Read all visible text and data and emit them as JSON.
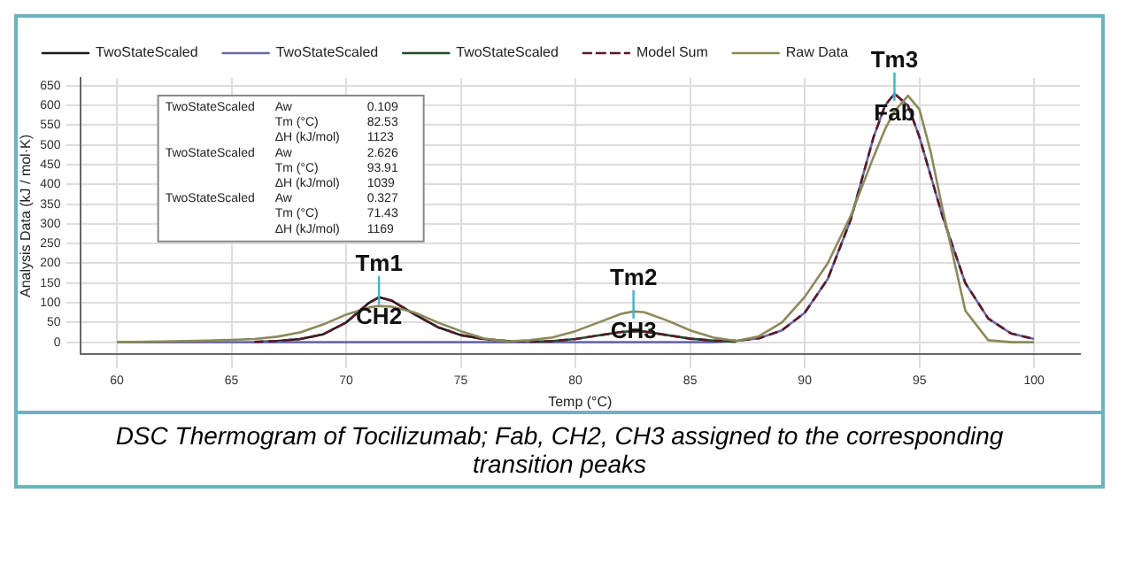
{
  "chart_data": {
    "type": "line",
    "xlabel": "Temp (°C)",
    "ylabel": "Analysis Data (kJ / mol·K)",
    "x": [
      60,
      62,
      64,
      66,
      67,
      68,
      69,
      70,
      71,
      71.43,
      72,
      73,
      74,
      75,
      76,
      77,
      78,
      79,
      80,
      81,
      82,
      82.53,
      83,
      84,
      85,
      86,
      87,
      88,
      89,
      90,
      91,
      92,
      93,
      93.5,
      93.91,
      94.5,
      95,
      95.5,
      96,
      97,
      98,
      99,
      100
    ],
    "series": [
      {
        "name": "TwoStateScaled",
        "color": "#1a1a1a",
        "values": [
          null,
          null,
          null,
          1,
          3,
          8,
          20,
          50,
          100,
          114,
          105,
          70,
          38,
          18,
          8,
          3,
          1,
          null,
          null,
          null,
          null,
          null,
          null,
          null,
          null,
          null,
          null,
          null,
          null,
          null,
          null,
          null,
          null,
          null,
          null,
          null,
          null,
          null,
          null,
          null,
          null,
          null,
          null
        ]
      },
      {
        "name": "TwoStateScaled",
        "color": "#6a6aa8",
        "values": [
          0,
          0,
          0,
          0,
          0,
          0,
          0,
          0,
          0,
          0,
          0,
          0,
          0,
          0,
          0,
          0,
          0,
          0,
          0,
          0,
          0,
          0,
          0,
          0,
          0,
          0,
          3,
          10,
          30,
          75,
          160,
          310,
          520,
          600,
          630,
          600,
          520,
          420,
          320,
          150,
          60,
          22,
          8
        ]
      },
      {
        "name": "TwoStateScaled",
        "color": "#1e4d2b",
        "values": [
          null,
          null,
          null,
          null,
          null,
          null,
          null,
          null,
          null,
          null,
          null,
          null,
          null,
          null,
          null,
          null,
          1,
          3,
          8,
          17,
          26,
          28,
          27,
          18,
          9,
          4,
          1,
          null,
          null,
          null,
          null,
          null,
          null,
          null,
          null,
          null,
          null,
          null,
          null,
          null,
          null,
          null,
          null
        ]
      },
      {
        "name": "Model Sum",
        "color": "#5a1a2a",
        "line_style": "dashed",
        "values": [
          null,
          null,
          null,
          1,
          3,
          8,
          20,
          50,
          100,
          114,
          105,
          70,
          38,
          18,
          8,
          3,
          2,
          3,
          8,
          17,
          26,
          28,
          27,
          18,
          9,
          4,
          4,
          10,
          30,
          75,
          160,
          310,
          520,
          600,
          630,
          600,
          520,
          420,
          320,
          150,
          60,
          22,
          8
        ]
      },
      {
        "name": "Raw Data",
        "color": "#8a8a5a",
        "values": [
          0,
          2,
          4,
          8,
          14,
          25,
          45,
          70,
          88,
          92,
          90,
          75,
          50,
          28,
          10,
          2,
          5,
          12,
          28,
          50,
          72,
          78,
          76,
          55,
          30,
          12,
          3,
          15,
          50,
          115,
          200,
          320,
          470,
          540,
          585,
          625,
          590,
          480,
          340,
          80,
          5,
          0,
          0
        ]
      }
    ],
    "xlim": [
      58.4,
      102
    ],
    "xticks": [
      60,
      65,
      70,
      75,
      80,
      85,
      90,
      95,
      100
    ],
    "ylim": [
      -30,
      670
    ],
    "yticks": [
      0,
      50,
      100,
      150,
      200,
      250,
      300,
      350,
      400,
      450,
      500,
      550,
      600,
      650
    ],
    "grid": true,
    "legend": "top",
    "marker": "none",
    "annotations": [
      {
        "text": "Tm1",
        "x": 71.43,
        "y": 114
      },
      {
        "text": "CH2",
        "x": 71.43,
        "y": 114
      },
      {
        "text": "Tm2",
        "x": 82.53,
        "y": 78
      },
      {
        "text": "CH3",
        "x": 82.53,
        "y": 78
      },
      {
        "text": "Tm3",
        "x": 93.91,
        "y": 630
      },
      {
        "text": "Fab",
        "x": 93.91,
        "y": 630
      },
      "TwoStateScaled\tAw\t0.109",
      "\tTm (°C)\t82.53",
      "\tΔH (kJ/mol)\t1123",
      "TwoStateScaled\tAw\t2.626",
      "\tTm (°C)\t93.91",
      "\tΔH (kJ/mol)\t1039",
      "TwoStateScaled\tAw\t0.327",
      "\tTm (°C)\t71.43",
      "\tΔH (kJ/mol)\t1169",
      "DSC Thermogram of Tocilizumab; Fab, CH2, CH3 assigned to the corresponding transition peaks"
    ]
  }
}
